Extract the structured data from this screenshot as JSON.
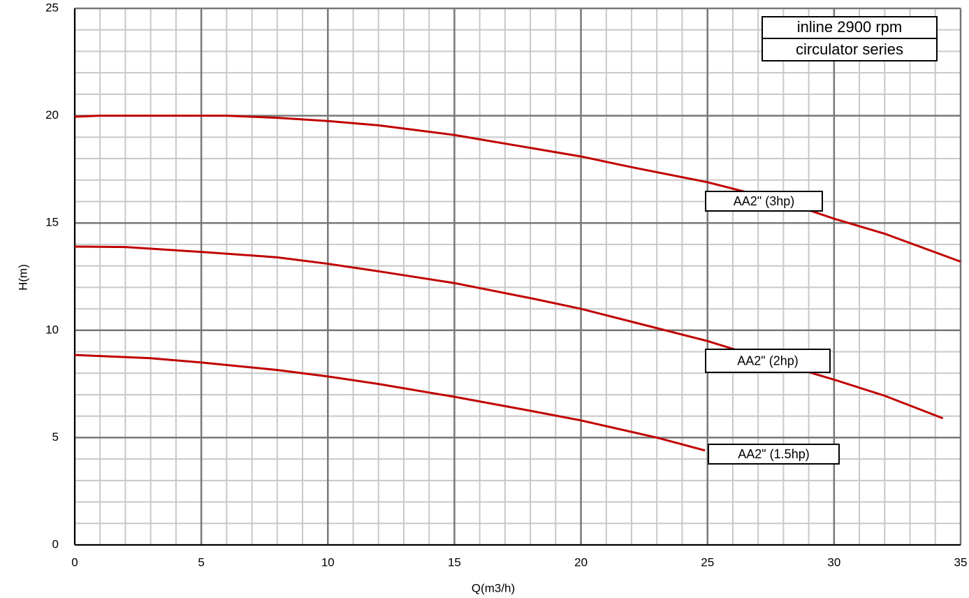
{
  "chart_data": {
    "type": "line",
    "annotations": [
      "inline 2900 rpm",
      "circulator series"
    ],
    "x_label": "Q(m3/h)",
    "y_label": "H(m)",
    "xlim": [
      0,
      35
    ],
    "ylim": [
      0,
      25
    ],
    "xticks": [
      0,
      5,
      10,
      15,
      20,
      25,
      30,
      35
    ],
    "yticks": [
      0,
      5,
      10,
      15,
      20,
      25
    ],
    "x_minor_ticks": [
      1,
      2,
      3,
      4,
      6,
      7,
      8,
      9,
      11,
      12,
      13,
      14,
      16,
      17,
      18,
      19,
      21,
      22,
      23,
      24,
      26,
      27,
      28,
      29,
      31,
      32,
      33,
      34
    ],
    "y_minor_ticks": [
      1,
      2,
      3,
      4,
      6,
      7,
      8,
      9,
      11,
      12,
      13,
      14,
      16,
      17,
      18,
      19,
      21,
      22,
      23,
      24
    ],
    "grid": true,
    "series": [
      {
        "name": "AA2\" (3hp)",
        "color": "#c00000",
        "x": [
          0,
          1,
          5,
          6,
          8,
          10,
          12,
          15,
          18,
          20,
          22,
          25,
          28,
          30,
          32,
          35
        ],
        "values": [
          19.95,
          20.0,
          20.0,
          20.0,
          19.9,
          19.75,
          19.55,
          19.1,
          18.5,
          18.1,
          17.6,
          16.9,
          16.0,
          15.2,
          14.5,
          13.2
        ]
      },
      {
        "name": "AA2\" (2hp)",
        "color": "#c00000",
        "x": [
          0,
          2,
          5,
          8,
          10,
          12,
          15,
          18,
          20,
          22,
          25,
          28,
          30,
          32,
          34.3
        ],
        "values": [
          13.9,
          13.88,
          13.65,
          13.4,
          13.1,
          12.75,
          12.2,
          11.5,
          11.0,
          10.4,
          9.5,
          8.4,
          7.7,
          6.95,
          5.9
        ]
      },
      {
        "name": "AA2\" (1.5hp)",
        "color": "#c00000",
        "x": [
          0,
          1,
          3,
          5,
          8,
          10,
          12,
          15,
          18,
          20,
          23,
          24.9
        ],
        "values": [
          8.85,
          8.8,
          8.7,
          8.5,
          8.15,
          7.85,
          7.5,
          6.9,
          6.25,
          5.8,
          5.0,
          4.4
        ]
      }
    ]
  }
}
